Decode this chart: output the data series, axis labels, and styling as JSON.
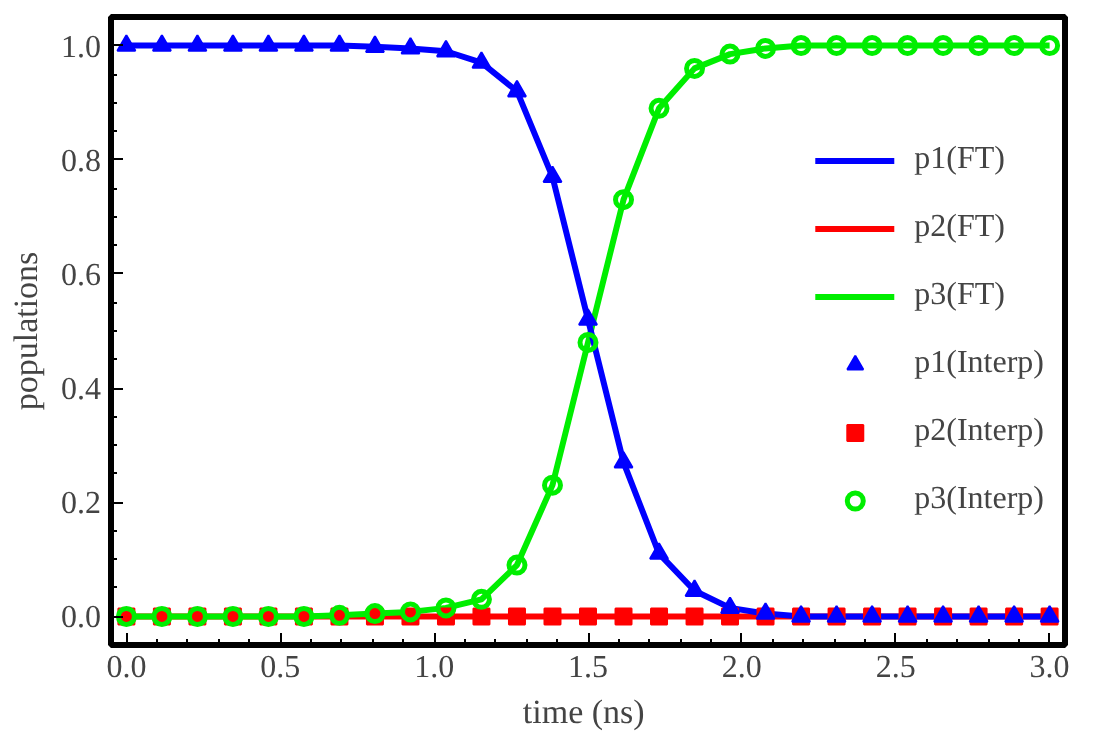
{
  "chart_data": {
    "type": "line",
    "xlabel": "time  (ns)",
    "ylabel": "populations",
    "x": [
      0,
      0.1154,
      0.2308,
      0.3462,
      0.4615,
      0.5769,
      0.6923,
      0.8077,
      0.9231,
      1.0385,
      1.1538,
      1.2692,
      1.3846,
      1.5,
      1.6154,
      1.7308,
      1.8462,
      1.9615,
      2.0769,
      2.1923,
      2.3077,
      2.4231,
      2.5385,
      2.6538,
      2.7692,
      2.8846,
      3.0
    ],
    "xlim": [
      -0.05,
      3.05
    ],
    "ylim": [
      -0.05,
      1.05
    ],
    "xticks": [
      {
        "value": 0,
        "label": "0.0"
      },
      {
        "value": 0.5,
        "label": "0.5"
      },
      {
        "value": 1,
        "label": "1.0"
      },
      {
        "value": 1.5,
        "label": "1.5"
      },
      {
        "value": 2,
        "label": "2.0"
      },
      {
        "value": 2.5,
        "label": "2.5"
      },
      {
        "value": 3,
        "label": "3.0"
      }
    ],
    "yticks": [
      {
        "value": 0,
        "label": "0.0"
      },
      {
        "value": 0.2,
        "label": "0.2"
      },
      {
        "value": 0.4,
        "label": "0.4"
      },
      {
        "value": 0.6,
        "label": "0.6"
      },
      {
        "value": 0.8,
        "label": "0.8"
      },
      {
        "value": 1,
        "label": "1.0"
      }
    ],
    "grid": false,
    "legend": "right",
    "series": [
      {
        "name": "p1(FT)",
        "color": "#0000ff",
        "values": [
          1,
          1,
          1,
          1,
          1,
          1,
          1,
          0.998,
          0.995,
          0.99,
          0.97,
          0.92,
          0.77,
          0.52,
          0.27,
          0.11,
          0.045,
          0.015,
          0.005,
          0,
          0,
          0,
          0,
          0,
          0,
          0,
          0
        ]
      },
      {
        "name": "p2(FT)",
        "color": "#ff0000",
        "values": [
          0,
          0,
          0,
          0,
          0,
          0,
          0,
          0,
          0,
          0,
          0,
          0,
          0,
          0,
          0,
          0,
          0,
          0,
          0,
          0,
          0,
          0,
          0,
          0,
          0,
          0,
          0
        ]
      },
      {
        "name": "p3(FT)",
        "color": "#00ee00",
        "values": [
          0,
          0,
          0,
          0,
          0,
          0,
          0.002,
          0.005,
          0.008,
          0.015,
          0.03,
          0.09,
          0.23,
          0.48,
          0.73,
          0.89,
          0.96,
          0.985,
          0.995,
          1,
          1,
          1,
          1,
          1,
          1,
          1,
          1
        ]
      },
      {
        "name": "p1(Interp)",
        "type": "scatter",
        "marker": "triangle",
        "color": "#0000ff",
        "values": [
          1,
          1,
          1,
          1,
          1,
          1,
          1,
          0.998,
          0.995,
          0.99,
          0.97,
          0.92,
          0.77,
          0.52,
          0.27,
          0.11,
          0.045,
          0.015,
          0.005,
          0,
          0,
          0,
          0,
          0,
          0,
          0,
          0
        ]
      },
      {
        "name": "p2(Interp)",
        "type": "scatter",
        "marker": "square",
        "color": "#ff0000",
        "values": [
          0,
          0,
          0,
          0,
          0,
          0,
          0,
          0,
          0,
          0,
          0,
          0,
          0,
          0,
          0,
          0,
          0,
          0,
          0,
          0,
          0,
          0,
          0,
          0,
          0,
          0,
          0
        ]
      },
      {
        "name": "p3(Interp)",
        "type": "scatter",
        "marker": "circle",
        "color": "#00ee00",
        "values": [
          0,
          0,
          0,
          0,
          0,
          0,
          0.002,
          0.005,
          0.008,
          0.015,
          0.03,
          0.09,
          0.23,
          0.48,
          0.73,
          0.89,
          0.96,
          0.985,
          0.995,
          1,
          1,
          1,
          1,
          1,
          1,
          1,
          1
        ]
      }
    ]
  }
}
